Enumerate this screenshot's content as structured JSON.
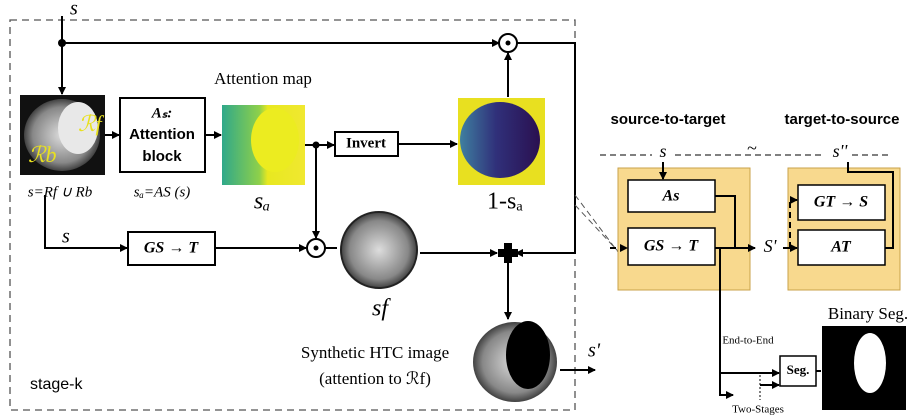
{
  "stage": {
    "input": "s",
    "attention_title": "Attention map",
    "attention_block": {
      "name": "Aₛ:",
      "line1": "Attention",
      "line2": "block"
    },
    "invert": "Invert",
    "region_f": "ℛf",
    "region_b": "ℛb",
    "input_def": "s=Rf ∪ Rb",
    "attention_def": "sₐ=AS (s)",
    "attention_label": "sₐ",
    "inverted_label": "1-sₐ",
    "input2": "s",
    "generator": "GS → T",
    "fused_label": "sf",
    "synthetic_line1": "Synthetic HTC image",
    "synthetic_line2": "(attention to ℛf)",
    "output": "s'",
    "stage_label": "stage-k"
  },
  "overview": {
    "source_to_target": "source-to-target",
    "target_to_source": "target-to-source",
    "s": "s",
    "tilde": "~",
    "s_double": "s''",
    "attn_s": "As",
    "gen_st": "GS → T",
    "s_prime": "S'",
    "gen_ts": "GT → S",
    "attn_t": "AT",
    "end_to_end": "End-to-End",
    "two_stages": "Two-Stages",
    "seg": "Seg.",
    "binary_seg": "Binary Seg."
  }
}
